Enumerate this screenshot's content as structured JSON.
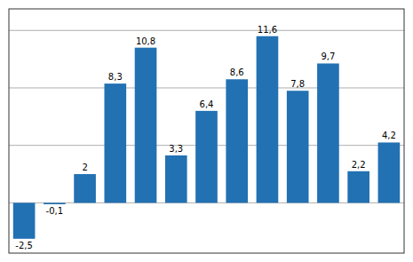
{
  "chart_data": {
    "type": "bar",
    "categories": [
      null,
      null,
      null,
      null,
      null,
      null,
      null,
      null,
      null,
      null,
      null,
      null,
      null
    ],
    "values": [
      -2.5,
      -0.1,
      2.0,
      8.3,
      10.8,
      3.3,
      6.4,
      8.6,
      11.6,
      7.8,
      9.7,
      2.2,
      4.2
    ],
    "value_labels": [
      "-2,5",
      "-0,1",
      "2",
      "8,3",
      "10,8",
      "3,3",
      "6,4",
      "8,6",
      "11,6",
      "7,8",
      "9,7",
      "2,2",
      "4,2"
    ],
    "color": "#2271b3",
    "ylim": [
      -3.5,
      13.5
    ],
    "yticks": [
      0,
      4,
      8,
      12
    ],
    "grid": true,
    "tick_labels": false,
    "data_labels": true
  }
}
